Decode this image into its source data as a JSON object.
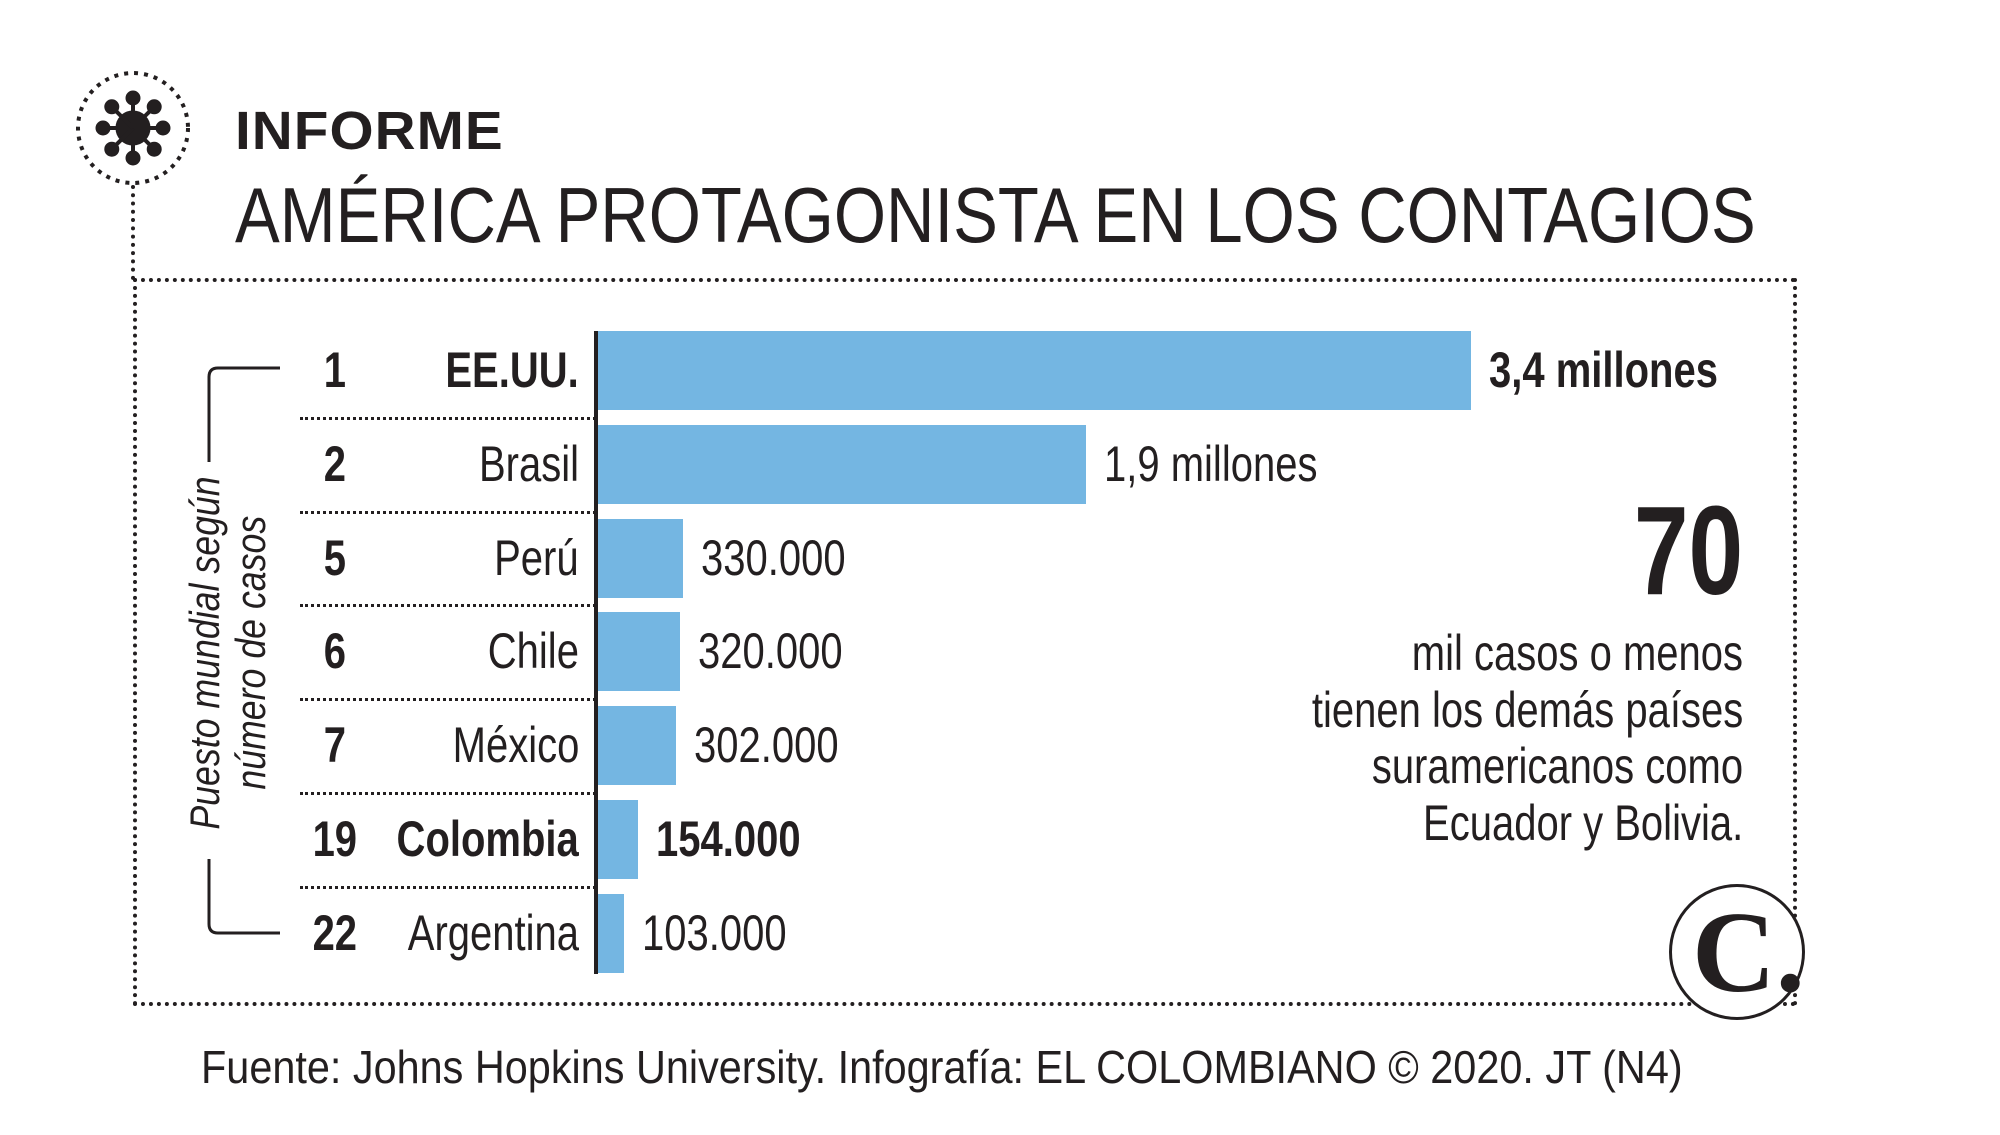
{
  "header": {
    "kicker": "INFORME",
    "title": "AMÉRICA PROTAGONISTA EN LOS CONTAGIOS",
    "icon": "virus-icon"
  },
  "chart_data": {
    "type": "bar",
    "orientation": "horizontal",
    "title": "AMÉRICA PROTAGONISTA EN LOS CONTAGIOS",
    "ylabel": "Puesto mundial según número de casos",
    "ylabel_lines": [
      "Puesto mundial según",
      "número de casos"
    ],
    "categories": [
      "EE.UU.",
      "Brasil",
      "Perú",
      "Chile",
      "México",
      "Colombia",
      "Argentina"
    ],
    "ranks": [
      "1",
      "2",
      "5",
      "6",
      "7",
      "19",
      "22"
    ],
    "values": [
      3400000,
      1900000,
      330000,
      320000,
      302000,
      154000,
      103000
    ],
    "value_labels": [
      "3,4 millones",
      "1,9 millones",
      "330.000",
      "320.000",
      "302.000",
      "154.000",
      "103.000"
    ],
    "highlighted": [
      "EE.UU.",
      "Colombia"
    ],
    "bar_color": "#74b6e2",
    "grid": false
  },
  "annotation": {
    "number": "70",
    "lines": [
      "mil casos o menos",
      "tienen los demás países",
      "suramericanos como",
      "Ecuador y Bolivia."
    ]
  },
  "footer": {
    "source": "Fuente: Johns Hopkins University. Infografía: EL COLOMBIANO © 2020. JT (N4)"
  },
  "logo": {
    "text": "C."
  }
}
